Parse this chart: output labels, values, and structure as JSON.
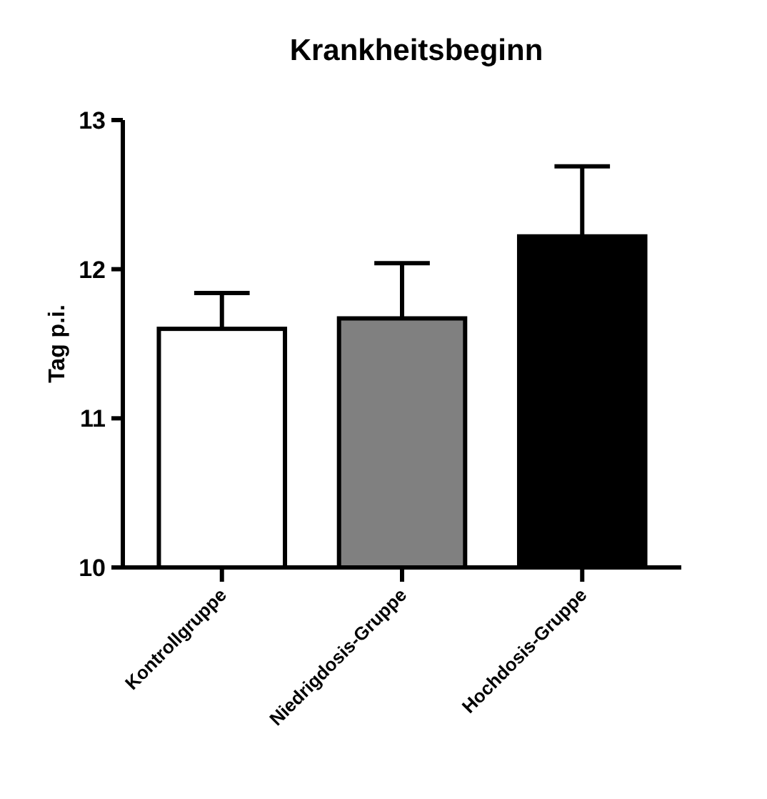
{
  "chart_data": {
    "type": "bar",
    "title": "Krankheitsbeginn",
    "ylabel": "Tag p.i.",
    "categories": [
      "Kontrollgruppe",
      "Niedrigdosis-Gruppe",
      "Hochdosis-Gruppe"
    ],
    "values": [
      11.6,
      11.67,
      12.22
    ],
    "colors": [
      "#ffffff",
      "#808080",
      "#000000"
    ],
    "errors": [
      [
        11.6,
        11.84
      ],
      [
        11.67,
        12.04
      ],
      [
        12.22,
        12.69
      ]
    ],
    "ylim": [
      10,
      13
    ],
    "yticks": [
      10,
      11,
      12,
      13
    ],
    "grid": false
  }
}
